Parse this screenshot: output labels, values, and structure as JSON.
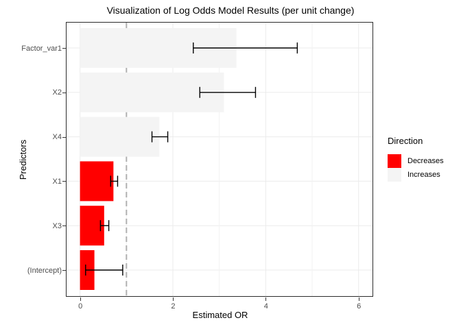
{
  "figure": {
    "title": "Visualization of Log Odds Model Results (per unit change)",
    "x_axis_label": "Estimated OR",
    "y_axis_label": "Predictors"
  },
  "legend": {
    "title": "Direction",
    "items": [
      {
        "label": "Decreases",
        "color": "#FF0000"
      },
      {
        "label": "Increases",
        "color": "#F4F4F4"
      }
    ]
  },
  "colors": {
    "panel_border": "#2B2B2B",
    "grid_major": "#EBEBEB",
    "grid_minor": "#F2F2F2",
    "errorbar": "#000000",
    "tick_label": "#4D4D4D",
    "reference_line": "#B0B0B0",
    "bar_decreases": "#FF0000",
    "bar_increases": "#F4F4F4"
  },
  "chart_data": {
    "type": "bar",
    "orientation": "horizontal",
    "title": "Visualization of Log Odds Model Results (per unit change)",
    "xlabel": "Estimated OR",
    "ylabel": "Predictors",
    "xlim": [
      -0.29,
      6.3
    ],
    "x_major_ticks": [
      0,
      2,
      4,
      6
    ],
    "x_minor_gridlines": [
      1,
      3,
      5
    ],
    "grid": true,
    "legend_title": "Direction",
    "legend_position": "right",
    "bar_baseline": 0,
    "reference_line": {
      "x": 1,
      "style": "dashed",
      "color": "#B0B0B0"
    },
    "categories_top_to_bottom": [
      "Factor_var1",
      "X2",
      "X4",
      "X1",
      "X3",
      "(Intercept)"
    ],
    "rows": [
      {
        "predictor": "Factor_var1",
        "or": 3.37,
        "ci_low": 2.44,
        "ci_high": 4.68,
        "direction": "Increases"
      },
      {
        "predictor": "X2",
        "or": 3.1,
        "ci_low": 2.58,
        "ci_high": 3.78,
        "direction": "Increases"
      },
      {
        "predictor": "X4",
        "or": 1.71,
        "ci_low": 1.55,
        "ci_high": 1.89,
        "direction": "Increases"
      },
      {
        "predictor": "X1",
        "or": 0.72,
        "ci_low": 0.66,
        "ci_high": 0.81,
        "direction": "Decreases"
      },
      {
        "predictor": "X3",
        "or": 0.52,
        "ci_low": 0.44,
        "ci_high": 0.62,
        "direction": "Decreases"
      },
      {
        "predictor": "(Intercept)",
        "or": 0.31,
        "ci_low": 0.12,
        "ci_high": 0.92,
        "direction": "Decreases"
      }
    ],
    "direction_colors": {
      "Decreases": "#FF0000",
      "Increases": "#F4F4F4"
    }
  }
}
